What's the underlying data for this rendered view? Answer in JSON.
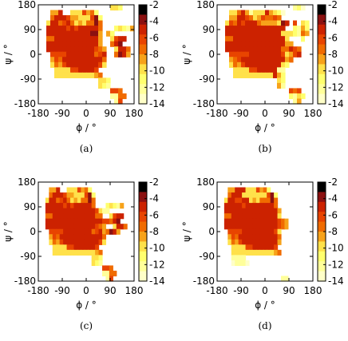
{
  "chart_data": [
    {
      "type": "heatmap",
      "caption": "(a)",
      "xlabel": "ϕ / °",
      "ylabel": "ψ / °",
      "xticks": [
        "-180",
        "-90",
        "0",
        "90",
        "180"
      ],
      "yticks": [
        "180",
        "90",
        "0",
        "-90",
        "-180"
      ],
      "xlim": [
        -180,
        180
      ],
      "ylim": [
        -180,
        180
      ],
      "colorbar": {
        "ticks": [
          "-2",
          "-4",
          "-6",
          "-8",
          "-10",
          "-12",
          "-14"
        ],
        "range": [
          -14,
          -2
        ]
      },
      "grid_degrees": 15,
      "grid": [
        "..................ffg...",
        "...eebkkfffcedg.........",
        "...dbbbceefffcag........",
        "..fbbdcbdfefddad....j...",
        "..bbbbbcbcbbbbbd...gfghe",
        "..bbbbbbbbbbbaae.eg.....",
        "..ddbbbbbbbbbbbe..fcbb.j",
        "..bbbbbbbbbbbbbe..dba...",
        "..bbbbbbbbbbbbcde..fbbd.",
        "...ccccbbbbbbbdcb..dabe.",
        "...ecdbbbbbbbbbbd.......",
        "...fdecbbbbbbbbcf.......",
        "....ffffccbbbbc.........",
        "....ffffffffffed........",
        "...............ffg......",
        "...............fgh......",
        "..................ccd...",
        "..................hhdd..",
        "...................hc..."
      ]
    },
    {
      "type": "heatmap",
      "caption": "(b)",
      "xlabel": "ϕ / °",
      "ylabel": "ψ / °",
      "xticks": [
        "-180",
        "-90",
        "0",
        "90",
        "180"
      ],
      "yticks": [
        "180",
        "90",
        "0",
        "-90",
        "-180"
      ],
      "xlim": [
        -180,
        180
      ],
      "ylim": [
        -180,
        180
      ],
      "colorbar": {
        "ticks": [
          "-2",
          "-4",
          "-6",
          "-8",
          "-10",
          "-12",
          "-14"
        ],
        "range": [
          -14,
          -2
        ]
      },
      "grid_degrees": 15,
      "grid": [
        "...................hgi..",
        "...ffdbehfffbefgi.......",
        "...eebbcdfecddcd........",
        "..fcdbcbbbdeeeefab.cjfg.",
        "..bbbbbbbbbbbbbbb.jgheg.",
        "..bbbbbbbbbbbbbbfffghde.",
        "..ddbbbbbbbbbbbbbf...gj.",
        "..bbbbbbbbbbbbbbbee.....",
        "..bbbbbbbbbbbbbbddbcd...",
        "...cccccbbbbbbbbcfecb...",
        "...edcbbbbbbbbbbbed.....",
        "...fdecbbbbbbbbbfg......",
        "....ffffccbbbbbhh.......",
        "....ffffffffffbeg.......",
        "...............fg.......",
        "...............eh.......",
        "..................cdc...",
        "..................ghfg..",
        "...................he..."
      ]
    },
    {
      "type": "heatmap",
      "caption": "(c)",
      "xlabel": "ϕ / °",
      "ylabel": "ψ / °",
      "xticks": [
        "-180",
        "-90",
        "0",
        "90",
        "180"
      ],
      "yticks": [
        "180",
        "90",
        "0",
        "-90",
        "-180"
      ],
      "xlim": [
        -180,
        180
      ],
      "ylim": [
        -180,
        180
      ],
      "colorbar": {
        "ticks": [
          "-2",
          "-4",
          "-6",
          "-8",
          "-10",
          "-12",
          "-14"
        ],
        "range": [
          -14,
          -2
        ]
      },
      "grid_degrees": 15,
      "grid": [
        "...........................",
        "...eebkkfffcedg............",
        "...dbbbceefffcag...........",
        "..fbbdcbdfefddad....j......",
        "..bbbbbcbcbbbbbd...gfghe...",
        "..bbbbbbbbbbbbbbcfhh.......",
        "..ddbbbbbbbbbbbbdd..fcbb.j.",
        "..bbbbbbbbbbbbbbbbccdba....",
        "..bbbbbbbbbbbbbbcde..fbbd..",
        "...ccccbbbbbbbbdcbedabe....",
        "...ecdbbbbbbbbbbbbd........",
        "...fdecbbbbbbbbbbcf........",
        "....ffffccbbbbbbc..........",
        "....ffffffffffffed.........",
        "...............ffg.........",
        "...............fgh.........",
        "..................ccd......",
        "..................hhdd.....",
        "...................hc......"
      ]
    },
    {
      "type": "heatmap",
      "caption": "(d)",
      "xlabel": "ϕ / °",
      "ylabel": "ψ / °",
      "xticks": [
        "-180",
        "-90",
        "0",
        "90",
        "180"
      ],
      "yticks": [
        "180",
        "90",
        "0",
        "-90",
        "-180"
      ],
      "xlim": [
        -180,
        180
      ],
      "ylim": [
        -180,
        180
      ],
      "colorbar": {
        "ticks": [
          "-2",
          "-4",
          "-6",
          "-8",
          "-10",
          "-12",
          "-14"
        ],
        "range": [
          -14,
          -2
        ]
      },
      "grid_degrees": 15,
      "grid": [
        "...........................",
        "...eebbbfffcedg............",
        "...dbbbfffffffcag..........",
        "..fbbccbbfefdddad..........",
        "..bbbbbcbbbbbbbbd...j......",
        "..bbbbbbbbbbbbbbbe.........",
        "..ddbbbbbbbbbbbbbf.........",
        "..bbbbbbbbbbbbbbbcde.......",
        "..bbbbbbbbbbbbbbbcde.......",
        "...ccccbbbbbbbbbcf.........",
        "...ecdbbbbbbbbbbbd.........",
        "...fdecbbbbbbbbbbe.........",
        "....ffffccbbbbbbc..........",
        "....ffffffffffffed.........",
        "....hhhh...................",
        "....ihhhi..................",
        "...........................",
        "...........................",
        "..................hh......."
      ]
    }
  ],
  "panels": [
    {
      "caption": "(a)",
      "y_label": "ψ / °",
      "x_label": "ϕ / °"
    },
    {
      "caption": "(b)",
      "y_label": "ψ / °",
      "x_label": "ϕ / °"
    },
    {
      "caption": "(c)",
      "y_label": "ψ / °",
      "x_label": "ϕ / °"
    },
    {
      "caption": "(d)",
      "y_label": "ψ / °",
      "x_label": "ϕ / °"
    }
  ],
  "colormap": [
    "#000000",
    "#8b1111",
    "#cc2200",
    "#e84400",
    "#f06b00",
    "#f7a21a",
    "#ffe14a",
    "#ffff6e",
    "#ffff9a",
    "#ffffc8",
    "#ffffff"
  ]
}
